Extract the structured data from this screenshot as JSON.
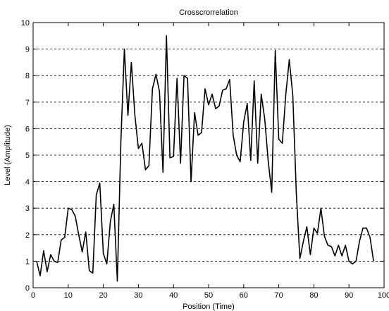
{
  "chart_data": {
    "type": "line",
    "title": "Crosscrorrelation",
    "xlabel": "Position (Time)",
    "ylabel": "Level (Amplitude)",
    "xlim": [
      0,
      100
    ],
    "ylim": [
      0,
      10
    ],
    "xticks": [
      0,
      10,
      20,
      30,
      40,
      50,
      60,
      70,
      80,
      90,
      100
    ],
    "yticks": [
      0,
      1,
      2,
      3,
      4,
      5,
      6,
      7,
      8,
      9,
      10
    ],
    "grid": "horizontal dashed",
    "line_color": "#000000",
    "series": [
      {
        "x": [
          1,
          2,
          3,
          4,
          5,
          6,
          7,
          8,
          9,
          10,
          11,
          12,
          13,
          14,
          15,
          16,
          17,
          18,
          19,
          20,
          21,
          22,
          23,
          24,
          25,
          26,
          27,
          28,
          29,
          30,
          31,
          32,
          33,
          34,
          35,
          36,
          37,
          38,
          39,
          40,
          41,
          42,
          43,
          44,
          45,
          46,
          47,
          48,
          49,
          50,
          51,
          52,
          53,
          54,
          55,
          56,
          57,
          58,
          59,
          60,
          61,
          62,
          63,
          64,
          65,
          66,
          67,
          68,
          69,
          70,
          71,
          72,
          73,
          74,
          75,
          76,
          77,
          78,
          79,
          80,
          81,
          82,
          83,
          84,
          85,
          86,
          87,
          88,
          89,
          90,
          91,
          92,
          93,
          94,
          95,
          96,
          97
        ],
        "y": [
          1.0,
          0.45,
          1.4,
          0.6,
          1.25,
          1.0,
          0.95,
          1.8,
          1.9,
          3.0,
          2.95,
          2.7,
          2.0,
          1.35,
          2.1,
          0.65,
          0.55,
          3.5,
          3.95,
          1.3,
          0.9,
          2.5,
          3.15,
          0.25,
          5.5,
          9.0,
          6.5,
          8.5,
          6.5,
          5.25,
          5.45,
          4.45,
          4.6,
          7.5,
          8.05,
          7.4,
          4.35,
          9.5,
          4.9,
          4.95,
          7.9,
          4.7,
          8.0,
          7.9,
          4.0,
          6.6,
          5.75,
          5.85,
          7.5,
          6.9,
          7.3,
          6.75,
          6.85,
          7.45,
          7.5,
          7.85,
          5.75,
          5.0,
          4.75,
          6.25,
          6.95,
          4.8,
          7.8,
          4.7,
          7.3,
          6.35,
          4.75,
          3.6,
          8.95,
          5.6,
          5.45,
          7.3,
          8.6,
          7.25,
          3.55,
          1.1,
          1.75,
          2.3,
          1.25,
          2.25,
          2.05,
          3.0,
          1.95,
          1.6,
          1.55,
          1.2,
          1.6,
          1.2,
          1.6,
          1.0,
          0.9,
          1.0,
          1.75,
          2.25,
          2.25,
          1.9,
          1.0
        ]
      }
    ]
  }
}
